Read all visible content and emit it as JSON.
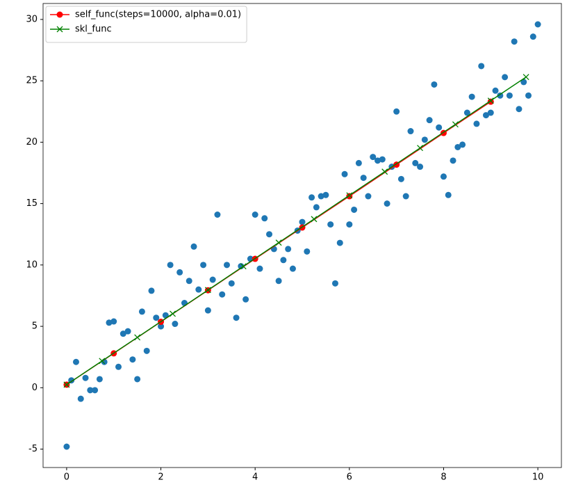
{
  "chart_data": {
    "type": "line",
    "xlim": [
      -0.5,
      10.5
    ],
    "ylim": [
      -6.5,
      31.3
    ],
    "xticks": [
      0,
      2,
      4,
      6,
      8,
      10
    ],
    "yticks": [
      -5,
      0,
      5,
      10,
      15,
      20,
      25,
      30
    ],
    "legend": "upper left",
    "series": [
      {
        "kind": "scatter",
        "color": "#1f77b4",
        "marker": "o",
        "x": [
          0,
          0.1,
          0.2,
          0.3,
          0.4,
          0.5,
          0.6,
          0.7,
          0.8,
          0.9,
          1,
          1.1,
          1.2,
          1.3,
          1.4,
          1.5,
          1.6,
          1.7,
          1.8,
          1.9,
          2,
          2.1,
          2.2,
          2.3,
          2.4,
          2.5,
          2.6,
          2.7,
          2.8,
          2.9,
          3,
          3.1,
          3.2,
          3.3,
          3.4,
          3.5,
          3.6,
          3.7,
          3.8,
          3.9,
          4,
          4.1,
          4.2,
          4.3,
          4.4,
          4.5,
          4.6,
          4.7,
          4.8,
          4.9,
          5,
          5.1,
          5.2,
          5.3,
          5.4,
          5.5,
          5.6,
          5.7,
          5.8,
          5.9,
          6,
          6.1,
          6.2,
          6.3,
          6.4,
          6.5,
          6.6,
          6.7,
          6.8,
          6.9,
          7,
          7.1,
          7.2,
          7.3,
          7.4,
          7.5,
          7.6,
          7.7,
          7.8,
          7.9,
          8,
          8.1,
          8.2,
          8.3,
          8.4,
          8.5,
          8.6,
          8.7,
          8.8,
          8.9,
          9,
          9.1,
          9.2,
          9.3,
          9.4,
          9.5,
          9.6,
          9.7,
          9.8,
          9.9,
          10
        ],
        "values": [
          -4.8,
          0.6,
          2.1,
          -0.9,
          0.8,
          -0.2,
          -0.2,
          0.7,
          2.1,
          5.3,
          5.4,
          1.7,
          4.4,
          4.6,
          2.3,
          0.7,
          6.2,
          3.0,
          7.9,
          5.7,
          5.0,
          5.9,
          10.0,
          5.2,
          9.4,
          6.9,
          8.7,
          11.5,
          8.0,
          10.0,
          6.3,
          8.8,
          14.1,
          7.6,
          10.0,
          8.5,
          5.7,
          9.9,
          7.2,
          10.5,
          14.1,
          9.7,
          13.8,
          12.5,
          11.3,
          8.7,
          10.4,
          11.3,
          9.7,
          12.8,
          13.5,
          11.1,
          15.5,
          14.7,
          15.6,
          15.7,
          13.3,
          8.5,
          11.8,
          17.4,
          13.3,
          14.5,
          18.3,
          17.1,
          15.6,
          18.8,
          18.5,
          18.6,
          15.0,
          18.0,
          22.5,
          17.0,
          15.6,
          20.9,
          18.3,
          18.0,
          20.2,
          21.8,
          24.7,
          21.2,
          17.2,
          15.7,
          18.5,
          19.6,
          19.8,
          22.4,
          23.7,
          21.5,
          26.2,
          22.2,
          22.4,
          24.2,
          23.8,
          25.3,
          23.8,
          28.2,
          22.7,
          24.9,
          23.8,
          28.6,
          29.6
        ]
      },
      {
        "kind": "line",
        "name": "self_func(steps=10000, alpha=0.01)",
        "color": "#ff0000",
        "marker": "o",
        "x": [
          0,
          1,
          2,
          3,
          4,
          5,
          6,
          7,
          8,
          9
        ],
        "values": [
          0.25,
          2.8,
          5.37,
          7.94,
          10.5,
          13.05,
          15.6,
          18.17,
          20.75,
          23.3
        ]
      },
      {
        "kind": "line",
        "name": "skl_func",
        "color": "#008000",
        "marker": "x",
        "x": [
          0,
          0.75,
          1.5,
          2.25,
          3,
          3.75,
          4.5,
          5.25,
          6,
          6.75,
          7.5,
          8.25,
          9,
          9.75
        ],
        "values": [
          0.25,
          2.18,
          4.1,
          6.03,
          7.96,
          9.89,
          11.82,
          13.74,
          15.67,
          17.6,
          19.53,
          21.45,
          23.38,
          25.31
        ]
      }
    ]
  }
}
